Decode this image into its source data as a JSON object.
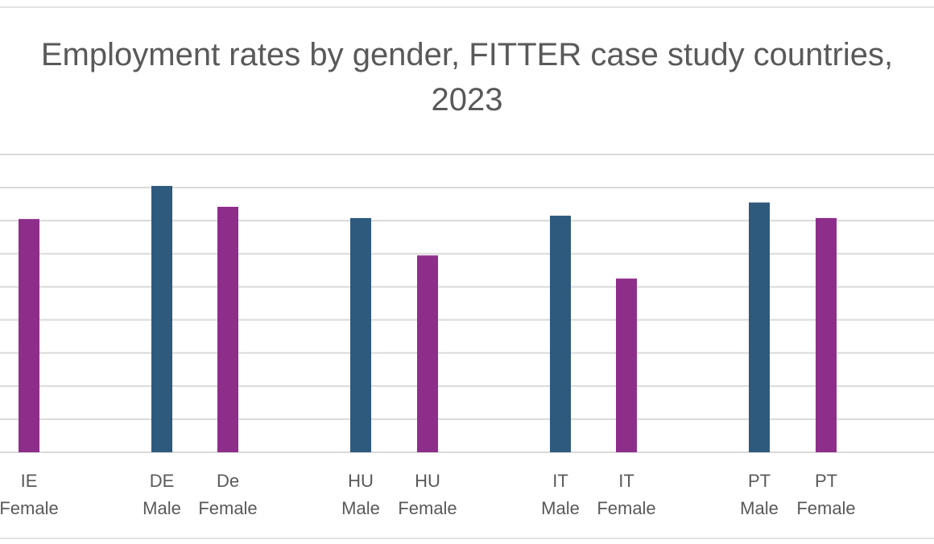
{
  "chart_data": {
    "type": "bar",
    "title_lines": [
      "Employment rates by gender, FITTER case study countries,",
      "2023"
    ],
    "categories": [
      [
        "IE",
        "Female"
      ],
      [
        "DE",
        "Male"
      ],
      [
        "De",
        "Female"
      ],
      [
        "HU",
        "Male"
      ],
      [
        "HU",
        "Female"
      ],
      [
        "IT",
        "Male"
      ],
      [
        "IT",
        "Female"
      ],
      [
        "PT",
        "Male"
      ],
      [
        "PT",
        "Female"
      ]
    ],
    "genders": [
      "female",
      "male",
      "female",
      "male",
      "female",
      "male",
      "female",
      "male",
      "female"
    ],
    "values": [
      70.5,
      80.5,
      74.2,
      70.8,
      59.5,
      71.5,
      52.5,
      75.5,
      70.8
    ],
    "ylim": [
      0,
      90
    ],
    "grid": true,
    "colors": {
      "male": "#2e5a7e",
      "female": "#8e2e8b",
      "grid": "#d9d9d9",
      "text": "#595959"
    }
  }
}
